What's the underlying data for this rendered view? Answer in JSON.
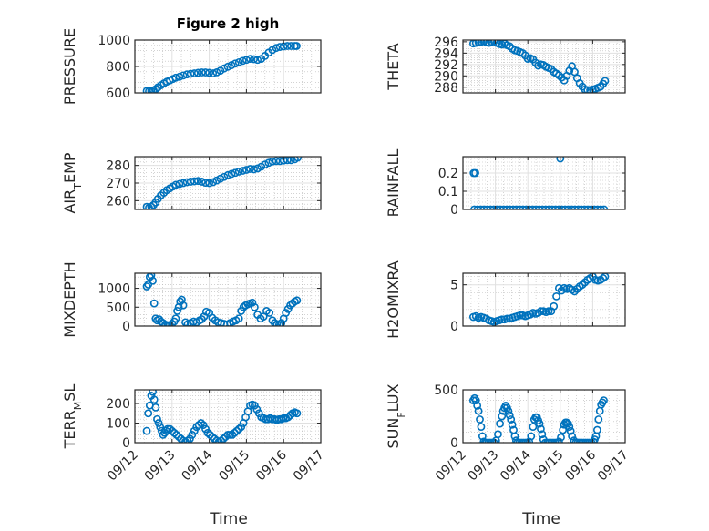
{
  "figure": {
    "title": "Figure 2 high",
    "xlabel": "Time"
  },
  "colors": {
    "marker": "#0072BD",
    "axis": "#262626",
    "grid": "#e0e0e0",
    "minor_grid": "#b8b8b8"
  },
  "chart_data": [
    {
      "type": "scatter",
      "ylabel": "PRESSURE",
      "xlim": [
        "09/12",
        "09/17"
      ],
      "ylim": [
        600,
        1000
      ],
      "yticks": [
        "600",
        "800",
        "1000"
      ],
      "ytick_values": [
        600,
        800,
        1000
      ],
      "xtick_labels": [],
      "x": [
        12.32,
        12.38,
        12.44,
        12.5,
        12.56,
        12.62,
        12.7,
        12.78,
        12.86,
        12.94,
        13.02,
        13.1,
        13.2,
        13.3,
        13.4,
        13.5,
        13.6,
        13.7,
        13.8,
        13.9,
        14.0,
        14.1,
        14.2,
        14.3,
        14.4,
        14.5,
        14.6,
        14.7,
        14.8,
        14.9,
        15.0,
        15.1,
        15.2,
        15.3,
        15.4,
        15.5,
        15.6,
        15.7,
        15.8,
        15.9,
        16.0,
        16.1,
        16.2,
        16.3,
        16.35
      ],
      "y": [
        615,
        612,
        614,
        620,
        628,
        642,
        658,
        672,
        685,
        695,
        705,
        715,
        722,
        732,
        740,
        745,
        748,
        752,
        755,
        755,
        752,
        748,
        756,
        768,
        785,
        798,
        810,
        822,
        832,
        842,
        850,
        858,
        855,
        850,
        858,
        880,
        905,
        925,
        940,
        948,
        952,
        955,
        955,
        955,
        955
      ]
    },
    {
      "type": "scatter",
      "ylabel": "THETA",
      "xlim": [
        "09/12",
        "09/17"
      ],
      "ylim": [
        287,
        296.3
      ],
      "yticks": [
        "288",
        "290",
        "292",
        "294",
        "296"
      ],
      "ytick_values": [
        288,
        290,
        292,
        294,
        296
      ],
      "xtick_labels": [],
      "x": [
        12.32,
        12.4,
        12.48,
        12.56,
        12.64,
        12.72,
        12.8,
        12.88,
        12.96,
        13.04,
        13.12,
        13.2,
        13.28,
        13.36,
        13.44,
        13.52,
        13.6,
        13.68,
        13.76,
        13.84,
        13.92,
        14.0,
        14.08,
        14.16,
        14.24,
        14.32,
        14.4,
        14.48,
        14.56,
        14.64,
        14.72,
        14.8,
        14.88,
        14.96,
        15.04,
        15.12,
        15.2,
        15.28,
        15.36,
        15.44,
        15.52,
        15.6,
        15.68,
        15.76,
        15.84,
        15.92,
        16.0,
        16.08,
        16.16,
        16.24,
        16.32,
        16.38
      ],
      "y": [
        295.7,
        295.8,
        295.9,
        296.0,
        296.1,
        295.9,
        295.8,
        296.0,
        296.1,
        295.8,
        295.6,
        295.5,
        295.7,
        295.4,
        295.2,
        294.8,
        294.5,
        294.4,
        294.2,
        294.0,
        293.6,
        293.0,
        293.1,
        292.9,
        292.3,
        291.8,
        292.0,
        291.9,
        291.6,
        291.4,
        291.2,
        290.7,
        290.4,
        290.1,
        289.7,
        289.2,
        290.0,
        290.9,
        291.7,
        290.7,
        289.6,
        288.7,
        288.1,
        287.6,
        287.5,
        287.5,
        287.6,
        287.7,
        287.9,
        288.1,
        288.6,
        289.1
      ]
    },
    {
      "type": "scatter",
      "ylabel": "AIR_TEMP",
      "xlim": [
        "09/12",
        "09/17"
      ],
      "ylim": [
        255,
        285
      ],
      "yticks": [
        "260",
        "270",
        "280"
      ],
      "ytick_values": [
        260,
        270,
        280
      ],
      "xtick_labels": [],
      "x": [
        12.32,
        12.38,
        12.44,
        12.5,
        12.56,
        12.62,
        12.7,
        12.78,
        12.86,
        12.94,
        13.02,
        13.1,
        13.2,
        13.3,
        13.4,
        13.5,
        13.6,
        13.7,
        13.8,
        13.9,
        14.0,
        14.1,
        14.2,
        14.3,
        14.4,
        14.5,
        14.6,
        14.7,
        14.8,
        14.9,
        15.0,
        15.1,
        15.2,
        15.3,
        15.4,
        15.5,
        15.6,
        15.7,
        15.8,
        15.9,
        16.0,
        16.1,
        16.2,
        16.3,
        16.38
      ],
      "y": [
        256.5,
        256,
        256.5,
        257.5,
        259,
        261,
        263,
        264.5,
        266,
        267,
        268,
        269,
        269.5,
        270,
        270.5,
        270.8,
        271,
        271.2,
        270.8,
        270.2,
        270,
        270.5,
        271.5,
        272.5,
        273.5,
        274.5,
        275.2,
        275.8,
        276.5,
        277,
        277.5,
        278,
        277.8,
        278.3,
        279.3,
        280.5,
        281.5,
        282.3,
        282.5,
        282.5,
        282.8,
        283,
        283,
        283.5,
        284.5
      ]
    },
    {
      "type": "scatter",
      "ylabel": "RAINFALL",
      "xlim": [
        "09/12",
        "09/17"
      ],
      "ylim": [
        0,
        0.29
      ],
      "yticks": [
        "0",
        "0.1",
        "0.2"
      ],
      "ytick_values": [
        0,
        0.1,
        0.2
      ],
      "xtick_labels": [],
      "x": [
        12.33,
        12.38,
        12.35,
        12.45,
        12.55,
        12.65,
        12.75,
        12.85,
        12.95,
        13.05,
        13.15,
        13.25,
        13.35,
        13.45,
        13.55,
        13.65,
        13.75,
        13.85,
        13.95,
        14.05,
        14.15,
        14.25,
        14.35,
        14.45,
        14.55,
        14.65,
        14.75,
        14.85,
        14.95,
        15.0,
        15.05,
        15.15,
        15.25,
        15.35,
        15.45,
        15.55,
        15.65,
        15.75,
        15.85,
        15.95,
        16.05,
        16.15,
        16.25,
        16.35
      ],
      "y": [
        0.2,
        0.2,
        0,
        0,
        0,
        0,
        0,
        0,
        0,
        0,
        0,
        0,
        0,
        0,
        0,
        0,
        0,
        0,
        0,
        0,
        0,
        0,
        0,
        0,
        0,
        0,
        0,
        0,
        0,
        0.28,
        0,
        0,
        0,
        0,
        0,
        0,
        0,
        0,
        0,
        0,
        0,
        0,
        0,
        0
      ]
    },
    {
      "type": "scatter",
      "ylabel": "MIXDEPTH",
      "xlim": [
        "09/12",
        "09/17"
      ],
      "ylim": [
        0,
        1400
      ],
      "yticks": [
        "0",
        "500",
        "1000"
      ],
      "ytick_values": [
        0,
        500,
        1000
      ],
      "xtick_labels": [],
      "x": [
        12.32,
        12.36,
        12.4,
        12.44,
        12.48,
        12.52,
        12.56,
        12.6,
        12.65,
        12.7,
        12.76,
        12.82,
        12.88,
        12.94,
        13.0,
        13.06,
        13.1,
        13.14,
        13.18,
        13.22,
        13.26,
        13.3,
        13.36,
        13.42,
        13.5,
        13.58,
        13.66,
        13.74,
        13.8,
        13.86,
        13.92,
        14.0,
        14.08,
        14.16,
        14.24,
        14.32,
        14.4,
        14.48,
        14.56,
        14.64,
        14.72,
        14.8,
        14.86,
        14.92,
        14.98,
        15.04,
        15.1,
        15.16,
        15.22,
        15.3,
        15.38,
        15.46,
        15.54,
        15.62,
        15.7,
        15.76,
        15.82,
        15.88,
        15.94,
        16.0,
        16.06,
        16.12,
        16.18,
        16.24,
        16.3,
        16.36
      ],
      "y": [
        1050,
        1100,
        1300,
        1350,
        1200,
        600,
        200,
        150,
        180,
        120,
        80,
        40,
        20,
        30,
        60,
        120,
        200,
        400,
        500,
        650,
        700,
        550,
        100,
        50,
        80,
        120,
        100,
        150,
        180,
        250,
        380,
        350,
        220,
        150,
        100,
        80,
        60,
        40,
        80,
        120,
        150,
        200,
        400,
        500,
        550,
        580,
        600,
        620,
        500,
        300,
        200,
        250,
        400,
        350,
        150,
        80,
        50,
        30,
        80,
        200,
        350,
        450,
        550,
        600,
        650,
        680
      ]
    },
    {
      "type": "scatter",
      "ylabel": "H2OMIXRA",
      "xlim": [
        "09/12",
        "09/17"
      ],
      "ylim": [
        0,
        6.4
      ],
      "yticks": [
        "0",
        "5"
      ],
      "ytick_values": [
        0,
        5
      ],
      "xtick_labels": [],
      "x": [
        12.32,
        12.4,
        12.48,
        12.56,
        12.64,
        12.72,
        12.8,
        12.88,
        12.96,
        13.04,
        13.12,
        13.2,
        13.28,
        13.36,
        13.44,
        13.52,
        13.6,
        13.68,
        13.76,
        13.84,
        13.92,
        14.0,
        14.08,
        14.16,
        14.24,
        14.32,
        14.4,
        14.48,
        14.56,
        14.64,
        14.72,
        14.8,
        14.88,
        14.96,
        15.04,
        15.12,
        15.2,
        15.28,
        15.36,
        15.44,
        15.52,
        15.6,
        15.68,
        15.76,
        15.84,
        15.92,
        16.0,
        16.08,
        16.16,
        16.24,
        16.32,
        16.38
      ],
      "y": [
        1.1,
        1.2,
        1.0,
        1.1,
        1.0,
        0.9,
        0.7,
        0.6,
        0.5,
        0.6,
        0.7,
        0.8,
        0.8,
        0.9,
        0.9,
        1.0,
        1.1,
        1.2,
        1.3,
        1.3,
        1.2,
        1.3,
        1.4,
        1.6,
        1.5,
        1.6,
        1.8,
        1.8,
        1.7,
        1.8,
        1.8,
        2.4,
        3.6,
        4.6,
        4.3,
        4.6,
        4.5,
        4.6,
        4.4,
        4.2,
        4.5,
        4.8,
        5.0,
        5.3,
        5.6,
        5.8,
        6.0,
        5.6,
        5.5,
        5.6,
        5.8,
        6.0
      ]
    },
    {
      "type": "scatter",
      "ylabel": "TERR_MSL",
      "xlim": [
        "09/12",
        "09/17"
      ],
      "ylim": [
        0,
        270
      ],
      "yticks": [
        "0",
        "100",
        "200"
      ],
      "ytick_values": [
        0,
        100,
        200
      ],
      "xtick_labels": [
        "09/12",
        "09/13",
        "09/14",
        "09/15",
        "09/16",
        "09/17"
      ],
      "x": [
        12.32,
        12.36,
        12.4,
        12.44,
        12.48,
        12.52,
        12.56,
        12.6,
        12.64,
        12.68,
        12.72,
        12.76,
        12.8,
        12.84,
        12.88,
        12.94,
        13.0,
        13.06,
        13.12,
        13.18,
        13.24,
        13.3,
        13.36,
        13.42,
        13.48,
        13.54,
        13.6,
        13.66,
        13.72,
        13.78,
        13.84,
        13.9,
        13.96,
        14.02,
        14.08,
        14.14,
        14.2,
        14.26,
        14.32,
        14.38,
        14.44,
        14.5,
        14.56,
        14.62,
        14.68,
        14.74,
        14.8,
        14.86,
        14.92,
        14.98,
        15.04,
        15.1,
        15.16,
        15.22,
        15.28,
        15.34,
        15.4,
        15.46,
        15.52,
        15.58,
        15.64,
        15.7,
        15.76,
        15.82,
        15.88,
        15.94,
        16.0,
        16.06,
        16.12,
        16.18,
        16.24,
        16.3,
        16.36
      ],
      "y": [
        60,
        150,
        190,
        240,
        260,
        220,
        180,
        120,
        100,
        80,
        60,
        40,
        50,
        60,
        70,
        70,
        60,
        50,
        40,
        30,
        20,
        10,
        5,
        10,
        20,
        40,
        60,
        80,
        90,
        100,
        90,
        70,
        50,
        40,
        30,
        20,
        10,
        5,
        10,
        20,
        30,
        40,
        40,
        40,
        50,
        60,
        70,
        80,
        100,
        130,
        160,
        190,
        195,
        190,
        170,
        150,
        130,
        125,
        120,
        120,
        125,
        120,
        120,
        115,
        120,
        120,
        125,
        125,
        130,
        140,
        150,
        155,
        150
      ]
    },
    {
      "type": "scatter",
      "ylabel": "SUN_FLUX",
      "xlim": [
        "09/12",
        "09/17"
      ],
      "ylim": [
        0,
        500
      ],
      "yticks": [
        "0",
        "500"
      ],
      "ytick_values": [
        0,
        500
      ],
      "xtick_labels": [
        "09/12",
        "09/13",
        "09/14",
        "09/15",
        "09/16",
        "09/17"
      ],
      "x": [
        12.32,
        12.36,
        12.4,
        12.44,
        12.48,
        12.52,
        12.56,
        12.6,
        12.64,
        12.68,
        12.72,
        12.78,
        12.84,
        12.9,
        12.96,
        13.02,
        13.08,
        13.14,
        13.2,
        13.24,
        13.28,
        13.32,
        13.36,
        13.4,
        13.44,
        13.48,
        13.52,
        13.56,
        13.6,
        13.64,
        13.68,
        13.74,
        13.8,
        13.86,
        13.92,
        13.98,
        14.04,
        14.1,
        14.16,
        14.2,
        14.24,
        14.28,
        14.32,
        14.36,
        14.4,
        14.44,
        14.48,
        14.54,
        14.6,
        14.66,
        14.72,
        14.78,
        14.84,
        14.9,
        14.96,
        15.02,
        15.08,
        15.12,
        15.16,
        15.2,
        15.24,
        15.28,
        15.32,
        15.36,
        15.42,
        15.48,
        15.54,
        15.6,
        15.66,
        15.72,
        15.78,
        15.84,
        15.9,
        15.96,
        16.02,
        16.06,
        16.1,
        16.14,
        16.18,
        16.22,
        16.26,
        16.3,
        16.34
      ],
      "y": [
        400,
        420,
        400,
        350,
        300,
        220,
        150,
        60,
        10,
        0,
        0,
        0,
        0,
        0,
        0,
        20,
        80,
        180,
        250,
        300,
        330,
        350,
        330,
        300,
        260,
        220,
        170,
        120,
        60,
        20,
        0,
        0,
        0,
        0,
        0,
        0,
        10,
        60,
        150,
        220,
        240,
        240,
        210,
        180,
        130,
        80,
        30,
        0,
        0,
        0,
        0,
        0,
        0,
        0,
        10,
        50,
        120,
        170,
        190,
        190,
        180,
        150,
        110,
        60,
        20,
        0,
        0,
        0,
        0,
        0,
        0,
        0,
        0,
        0,
        10,
        30,
        60,
        120,
        220,
        300,
        360,
        380,
        400
      ]
    }
  ]
}
